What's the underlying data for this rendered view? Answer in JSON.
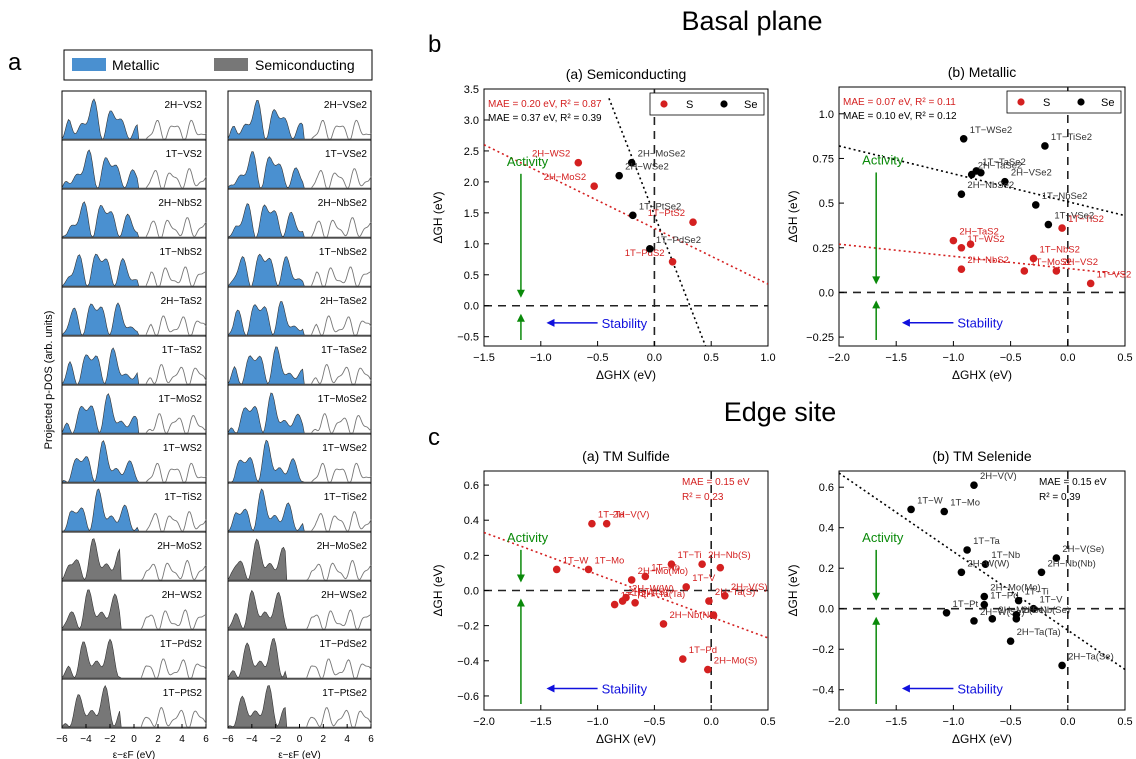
{
  "figure": {
    "panel_a_label": "a",
    "panel_b_label": "b",
    "panel_c_label": "c",
    "basal_title": "Basal plane",
    "edge_title": "Edge site"
  },
  "colors": {
    "metallic": "#4a90d0",
    "semiconducting": "#777777",
    "sulfur": "#d42020",
    "selenium": "#000000",
    "activity": "#0a8a0a",
    "stability": "#1010dd"
  },
  "dos": {
    "legend_metallic": "Metallic",
    "legend_semiconducting": "Semiconducting",
    "ylabel": "Projected p-DOS (arb. units)",
    "xlabel": "ε−εF (eV)",
    "xticks": [
      "−6",
      "−4",
      "−2",
      "0",
      "2",
      "4",
      "6"
    ],
    "left_column": [
      {
        "label": "2H−VS2",
        "type": "metallic"
      },
      {
        "label": "1T−VS2",
        "type": "metallic"
      },
      {
        "label": "2H−NbS2",
        "type": "metallic"
      },
      {
        "label": "1T−NbS2",
        "type": "metallic"
      },
      {
        "label": "2H−TaS2",
        "type": "metallic"
      },
      {
        "label": "1T−TaS2",
        "type": "metallic"
      },
      {
        "label": "1T−MoS2",
        "type": "metallic"
      },
      {
        "label": "1T−WS2",
        "type": "metallic"
      },
      {
        "label": "1T−TiS2",
        "type": "metallic"
      },
      {
        "label": "2H−MoS2",
        "type": "semiconducting"
      },
      {
        "label": "2H−WS2",
        "type": "semiconducting"
      },
      {
        "label": "1T−PdS2",
        "type": "semiconducting"
      },
      {
        "label": "1T−PtS2",
        "type": "semiconducting"
      }
    ],
    "right_column": [
      {
        "label": "2H−VSe2",
        "type": "metallic"
      },
      {
        "label": "1T−VSe2",
        "type": "metallic"
      },
      {
        "label": "2H−NbSe2",
        "type": "metallic"
      },
      {
        "label": "1T−NbSe2",
        "type": "metallic"
      },
      {
        "label": "2H−TaSe2",
        "type": "metallic"
      },
      {
        "label": "1T−TaSe2",
        "type": "metallic"
      },
      {
        "label": "1T−MoSe2",
        "type": "metallic"
      },
      {
        "label": "1T−WSe2",
        "type": "metallic"
      },
      {
        "label": "1T−TiSe2",
        "type": "metallic"
      },
      {
        "label": "2H−MoSe2",
        "type": "semiconducting"
      },
      {
        "label": "2H−WSe2",
        "type": "semiconducting"
      },
      {
        "label": "1T−PdSe2",
        "type": "semiconducting"
      },
      {
        "label": "1T−PtSe2",
        "type": "semiconducting"
      }
    ]
  },
  "chart_data": [
    {
      "id": "b-semiconducting",
      "type": "scatter",
      "title": "(a) Semiconducting",
      "xlabel": "ΔGHX (eV)",
      "ylabel": "ΔGH (eV)",
      "xlim": [
        -1.5,
        1.0
      ],
      "ylim": [
        -0.65,
        3.5
      ],
      "xticks": [
        -1.5,
        -1.0,
        -0.5,
        0.0,
        0.5,
        1.0
      ],
      "yticks": [
        -0.5,
        0.0,
        0.5,
        1.0,
        1.5,
        2.0,
        2.5,
        3.0,
        3.5
      ],
      "legend": [
        "S",
        "Se"
      ],
      "mae_lines": [
        {
          "text": "MAE = 0.20 eV, R² = 0.87",
          "color": "#d42020"
        },
        {
          "text": "MAE = 0.37 eV, R² = 0.39",
          "color": "#000000"
        }
      ],
      "fits": [
        {
          "color": "#d42020",
          "x": [
            -1.5,
            1.0
          ],
          "y": [
            2.6,
            0.35
          ]
        },
        {
          "color": "#000000",
          "x": [
            -0.4,
            0.45
          ],
          "y": [
            3.35,
            -0.65
          ]
        }
      ],
      "series": [
        {
          "name": "S",
          "color": "#d42020",
          "points": [
            {
              "x": -0.67,
              "y": 2.31,
              "label": "2H−WS2"
            },
            {
              "x": -0.53,
              "y": 1.93,
              "label": "2H−MoS2"
            },
            {
              "x": 0.34,
              "y": 1.35,
              "label": "1T−PtS2"
            },
            {
              "x": 0.16,
              "y": 0.71,
              "label": "1T−PdS2"
            }
          ]
        },
        {
          "name": "Se",
          "color": "#000000",
          "points": [
            {
              "x": -0.2,
              "y": 2.31,
              "label": "2H−MoSe2"
            },
            {
              "x": -0.31,
              "y": 2.1,
              "label": "2H−WSe2"
            },
            {
              "x": -0.19,
              "y": 1.46,
              "label": "1T−PtSe2"
            },
            {
              "x": -0.04,
              "y": 0.92,
              "label": "1T−PdSe2"
            }
          ]
        }
      ],
      "activity": "Activity",
      "stability": "Stability"
    },
    {
      "id": "b-metallic",
      "type": "scatter",
      "title": "(b) Metallic",
      "xlabel": "ΔGHX (eV)",
      "ylabel": "ΔGH (eV)",
      "xlim": [
        -2.0,
        0.5
      ],
      "ylim": [
        -0.3,
        1.15
      ],
      "xticks": [
        -2.0,
        -1.5,
        -1.0,
        -0.5,
        0.0,
        0.5
      ],
      "yticks": [
        -0.25,
        0.0,
        0.25,
        0.5,
        0.75,
        1.0
      ],
      "legend": [
        "S",
        "Se"
      ],
      "mae_lines": [
        {
          "text": "MAE = 0.07 eV, R² = 0.11",
          "color": "#d42020"
        },
        {
          "text": "MAE = 0.10 eV, R² = 0.12",
          "color": "#000000"
        }
      ],
      "fits": [
        {
          "color": "#d42020",
          "x": [
            -2.0,
            0.5
          ],
          "y": [
            0.27,
            0.1
          ]
        },
        {
          "color": "#000000",
          "x": [
            -2.0,
            0.5
          ],
          "y": [
            0.82,
            0.43
          ]
        }
      ],
      "series": [
        {
          "name": "S",
          "color": "#d42020",
          "points": [
            {
              "x": -1.0,
              "y": 0.29,
              "label": "2H−TaS2"
            },
            {
              "x": -0.93,
              "y": 0.25,
              "label": "1T−WS2"
            },
            {
              "x": -0.85,
              "y": 0.27,
              "label": ""
            },
            {
              "x": -0.93,
              "y": 0.13,
              "label": "2H−NbS2"
            },
            {
              "x": -0.38,
              "y": 0.12,
              "label": "1T−MoS2"
            },
            {
              "x": -0.3,
              "y": 0.19,
              "label": "1T−NbS2"
            },
            {
              "x": -0.1,
              "y": 0.12,
              "label": "2H−VS2"
            },
            {
              "x": -0.05,
              "y": 0.36,
              "label": "1T−TiS2"
            },
            {
              "x": 0.2,
              "y": 0.05,
              "label": "1T−VS2"
            }
          ]
        },
        {
          "name": "Se",
          "color": "#000000",
          "points": [
            {
              "x": -0.91,
              "y": 0.86,
              "label": "1T−WSe2"
            },
            {
              "x": -0.2,
              "y": 0.82,
              "label": "1T−TiSe2"
            },
            {
              "x": -0.8,
              "y": 0.68,
              "label": "1T−TaSe2"
            },
            {
              "x": -0.84,
              "y": 0.66,
              "label": "2H−TaSe2"
            },
            {
              "x": -0.76,
              "y": 0.67,
              "label": ""
            },
            {
              "x": -0.55,
              "y": 0.62,
              "label": "2H−VSe2"
            },
            {
              "x": -0.93,
              "y": 0.55,
              "label": "2H−NbSe2"
            },
            {
              "x": -0.28,
              "y": 0.49,
              "label": "1T−NbSe2"
            },
            {
              "x": -0.17,
              "y": 0.38,
              "label": "1T−VSe2"
            }
          ]
        }
      ],
      "activity": "Activity",
      "stability": "Stability"
    },
    {
      "id": "c-sulfide",
      "type": "scatter",
      "title": "(a) TM Sulfide",
      "xlabel": "ΔGHX (eV)",
      "ylabel": "ΔGH (eV)",
      "xlim": [
        -2.0,
        0.5
      ],
      "ylim": [
        -0.68,
        0.68
      ],
      "xticks": [
        -2.0,
        -1.5,
        -1.0,
        -0.5,
        0.0,
        0.5
      ],
      "yticks": [
        -0.6,
        -0.4,
        -0.2,
        0.0,
        0.2,
        0.4,
        0.6
      ],
      "mae_lines": [
        {
          "text": "MAE = 0.15 eV",
          "color": "#d42020"
        },
        {
          "text": "R² = 0.23",
          "color": "#d42020"
        }
      ],
      "fits": [
        {
          "color": "#d42020",
          "x": [
            -2.0,
            0.5
          ],
          "y": [
            0.33,
            -0.27
          ]
        }
      ],
      "series": [
        {
          "name": "",
          "color": "#d42020",
          "points": [
            {
              "x": -1.05,
              "y": 0.38,
              "label": "1T−Ta"
            },
            {
              "x": -0.92,
              "y": 0.38,
              "label": "2H−V(V)"
            },
            {
              "x": -1.36,
              "y": 0.12,
              "label": "1T−W"
            },
            {
              "x": -1.08,
              "y": 0.12,
              "label": "1T−Mo"
            },
            {
              "x": -0.7,
              "y": 0.06,
              "label": "2H−Mo(Mo)"
            },
            {
              "x": -0.58,
              "y": 0.08,
              "label": "1T−Nb"
            },
            {
              "x": -0.35,
              "y": 0.15,
              "label": "1T−Ti"
            },
            {
              "x": -0.22,
              "y": 0.02,
              "label": "1T−V"
            },
            {
              "x": -0.08,
              "y": 0.15,
              "label": "2H−Nb(S)"
            },
            {
              "x": 0.08,
              "y": 0.13,
              "label": ""
            },
            {
              "x": 0.12,
              "y": -0.03,
              "label": "2H−V(S)"
            },
            {
              "x": -0.02,
              "y": -0.06,
              "label": "2H−Ta(S)"
            },
            {
              "x": -0.75,
              "y": -0.04,
              "label": "2H−W(W)"
            },
            {
              "x": -0.85,
              "y": -0.08,
              "label": "1T−Pt"
            },
            {
              "x": -0.78,
              "y": -0.06,
              "label": "2H−W(S)"
            },
            {
              "x": -0.67,
              "y": -0.07,
              "label": "2H−Ta(Ta)"
            },
            {
              "x": -0.42,
              "y": -0.19,
              "label": "2H−Nb(Nb)"
            },
            {
              "x": 0.02,
              "y": -0.14,
              "label": ""
            },
            {
              "x": -0.25,
              "y": -0.39,
              "label": "1T−Pd"
            },
            {
              "x": -0.03,
              "y": -0.45,
              "label": "2H−Mo(S)"
            }
          ]
        }
      ],
      "activity": "Activity",
      "stability": "Stability"
    },
    {
      "id": "c-selenide",
      "type": "scatter",
      "title": "(b) TM Selenide",
      "xlabel": "ΔGHX (eV)",
      "ylabel": "ΔGH (eV)",
      "xlim": [
        -2.0,
        0.5
      ],
      "ylim": [
        -0.5,
        0.68
      ],
      "xticks": [
        -2.0,
        -1.5,
        -1.0,
        -0.5,
        0.0,
        0.5
      ],
      "yticks": [
        -0.4,
        -0.2,
        0.0,
        0.2,
        0.4,
        0.6
      ],
      "mae_lines": [
        {
          "text": "MAE = 0.15 eV",
          "color": "#000000"
        },
        {
          "text": "R² = 0.39",
          "color": "#000000"
        }
      ],
      "fits": [
        {
          "color": "#000000",
          "x": [
            -2.0,
            0.5
          ],
          "y": [
            0.67,
            -0.3
          ]
        }
      ],
      "series": [
        {
          "name": "",
          "color": "#000000",
          "points": [
            {
              "x": -0.82,
              "y": 0.61,
              "label": "2H−V(V)"
            },
            {
              "x": -1.37,
              "y": 0.49,
              "label": "1T−W"
            },
            {
              "x": -1.08,
              "y": 0.48,
              "label": "1T−Mo"
            },
            {
              "x": -0.88,
              "y": 0.29,
              "label": "1T−Ta"
            },
            {
              "x": -0.72,
              "y": 0.22,
              "label": "1T−Nb"
            },
            {
              "x": -0.93,
              "y": 0.18,
              "label": "2H−W(W)"
            },
            {
              "x": -0.1,
              "y": 0.25,
              "label": "2H−V(Se)"
            },
            {
              "x": -0.23,
              "y": 0.18,
              "label": "2H−Nb(Nb)"
            },
            {
              "x": -0.73,
              "y": 0.06,
              "label": "2H−Mo(Mo)"
            },
            {
              "x": -0.73,
              "y": 0.02,
              "label": "1T−Pd"
            },
            {
              "x": -0.43,
              "y": 0.04,
              "label": "1T−Ti"
            },
            {
              "x": -0.3,
              "y": 0.0,
              "label": "1T−V"
            },
            {
              "x": -1.06,
              "y": -0.02,
              "label": "1T−Pt"
            },
            {
              "x": -0.82,
              "y": -0.06,
              "label": "2H−W(Se)"
            },
            {
              "x": -0.66,
              "y": -0.05,
              "label": "2H−Mo(Se)"
            },
            {
              "x": -0.45,
              "y": -0.05,
              "label": "2H−Nb(Se)"
            },
            {
              "x": -0.45,
              "y": -0.03,
              "label": ""
            },
            {
              "x": -0.5,
              "y": -0.16,
              "label": "2H−Ta(Ta)"
            },
            {
              "x": -0.05,
              "y": -0.28,
              "label": "2H−Ta(Se)"
            }
          ]
        }
      ],
      "activity": "Activity",
      "stability": "Stability"
    }
  ]
}
